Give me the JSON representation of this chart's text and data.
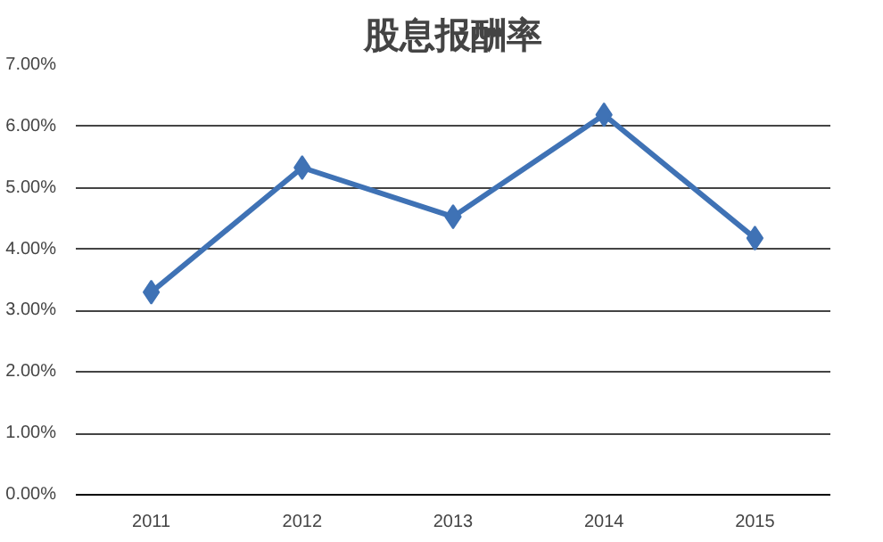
{
  "chart_data": {
    "type": "line",
    "title": "股息报酬率",
    "categories": [
      "2011",
      "2012",
      "2013",
      "2014",
      "2015"
    ],
    "series": [
      {
        "color": "#3f72b5",
        "values": [
          3.3,
          5.33,
          4.53,
          6.19,
          4.18
        ]
      }
    ],
    "ylim": [
      0,
      7
    ],
    "yticks": [
      {
        "value": 0,
        "label": "0.00%"
      },
      {
        "value": 1,
        "label": "1.00%"
      },
      {
        "value": 2,
        "label": "2.00%"
      },
      {
        "value": 3,
        "label": "3.00%"
      },
      {
        "value": 4,
        "label": "4.00%"
      },
      {
        "value": 5,
        "label": "5.00%"
      },
      {
        "value": 6,
        "label": "6.00%"
      },
      {
        "value": 7,
        "label": "7.00%"
      }
    ],
    "grid": "y",
    "marker": "diamond",
    "line_style": "solid"
  }
}
